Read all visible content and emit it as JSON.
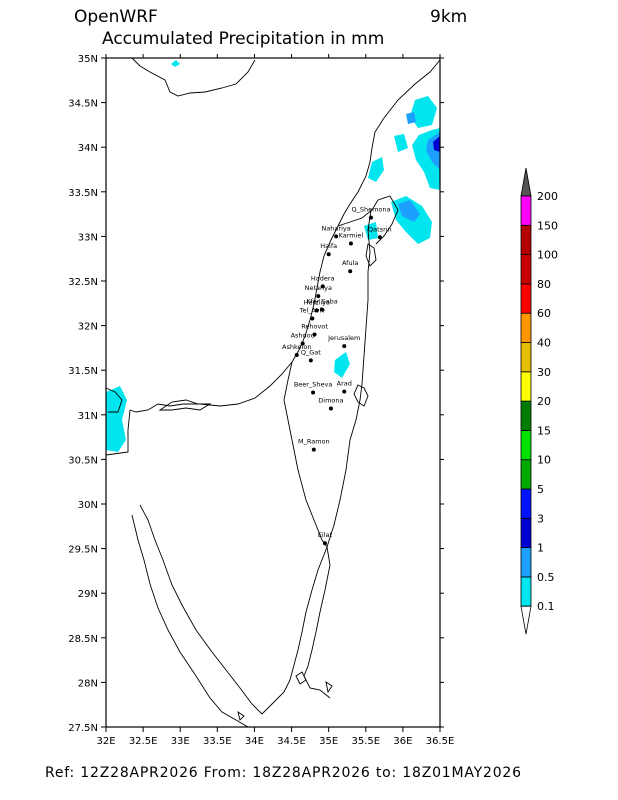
{
  "header": {
    "model": "OpenWRF",
    "resolution": "9km",
    "variable": "Accumulated Precipitation in mm"
  },
  "map": {
    "lat_ticks": [
      "35N",
      "34.5N",
      "34N",
      "33.5N",
      "33N",
      "32.5N",
      "32N",
      "31.5N",
      "31N",
      "30.5N",
      "30N",
      "29.5N",
      "29N",
      "28.5N",
      "28N",
      "27.5N"
    ],
    "lon_ticks": [
      "32E",
      "32.5E",
      "33E",
      "33.5E",
      "34E",
      "34.5E",
      "35E",
      "35.5E",
      "36E",
      "36.5E"
    ],
    "cities": [
      {
        "name": "Q_Shemona",
        "lon": 35.57,
        "lat": 33.21
      },
      {
        "name": "Nahariya",
        "lon": 35.1,
        "lat": 33.0
      },
      {
        "name": "Karmiel",
        "lon": 35.3,
        "lat": 32.92
      },
      {
        "name": "Qatsrin",
        "lon": 35.69,
        "lat": 32.99
      },
      {
        "name": "Haifa",
        "lon": 35.0,
        "lat": 32.8
      },
      {
        "name": "Afula",
        "lon": 35.29,
        "lat": 32.61
      },
      {
        "name": "Hadera",
        "lon": 34.92,
        "lat": 32.44
      },
      {
        "name": "Netanya",
        "lon": 34.86,
        "lat": 32.33
      },
      {
        "name": "Herzliya",
        "lon": 34.84,
        "lat": 32.17
      },
      {
        "name": "Kfar Saba",
        "lon": 34.91,
        "lat": 32.18
      },
      {
        "name": "Tel_Aviv",
        "lon": 34.78,
        "lat": 32.08
      },
      {
        "name": "Rehovot",
        "lon": 34.81,
        "lat": 31.9
      },
      {
        "name": "Jerusalem",
        "lon": 35.21,
        "lat": 31.77
      },
      {
        "name": "Ashdod",
        "lon": 34.65,
        "lat": 31.8
      },
      {
        "name": "Ashkelon",
        "lon": 34.57,
        "lat": 31.67
      },
      {
        "name": "Q_Gat",
        "lon": 34.76,
        "lat": 31.61
      },
      {
        "name": "Beer_Sheva",
        "lon": 34.79,
        "lat": 31.25
      },
      {
        "name": "Arad",
        "lon": 35.21,
        "lat": 31.26
      },
      {
        "name": "Dimona",
        "lon": 35.03,
        "lat": 31.07
      },
      {
        "name": "M_Ramon",
        "lon": 34.8,
        "lat": 30.61
      },
      {
        "name": "Eilat",
        "lon": 34.95,
        "lat": 29.56
      }
    ]
  },
  "legend": {
    "levels": [
      "0.1",
      "0.5",
      "1",
      "3",
      "5",
      "10",
      "15",
      "20",
      "30",
      "40",
      "60",
      "80",
      "100",
      "150",
      "200"
    ],
    "colors": [
      "#00e5ee",
      "#1c9fff",
      "#0000d2",
      "#0012ff",
      "#00a800",
      "#00e100",
      "#007d00",
      "#ffff00",
      "#e6be00",
      "#ff9600",
      "#ff0000",
      "#c80000",
      "#b40000",
      "#ff00ff",
      "#9b59b6"
    ]
  },
  "footer": {
    "text": "Ref: 12Z28APR2026  From: 18Z28APR2026 to: 18Z01MAY2026"
  }
}
